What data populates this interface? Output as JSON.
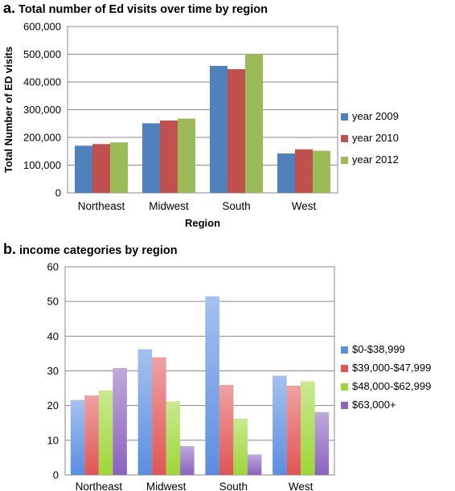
{
  "chart_data": [
    {
      "type": "bar",
      "panel_label": "a.",
      "title": "Total number of Ed visits over time by region",
      "xlabel": "Region",
      "ylabel": "Total Number of ED visits",
      "ylim": [
        0,
        600000
      ],
      "yticks": [
        0,
        100000,
        200000,
        300000,
        400000,
        500000,
        600000
      ],
      "ytick_labels": [
        "0",
        "100,000",
        "200,000",
        "300,000",
        "400,000",
        "500,000",
        "600,000"
      ],
      "categories": [
        "Northeast",
        "Midwest",
        "South",
        "West"
      ],
      "series": [
        {
          "name": "year 2009",
          "values": [
            170000,
            251000,
            458000,
            142000
          ],
          "color": "#4f81bd"
        },
        {
          "name": "year 2010",
          "values": [
            176000,
            261000,
            446000,
            157000
          ],
          "color": "#c0504d"
        },
        {
          "name": "year 2012",
          "values": [
            182000,
            268000,
            500000,
            152000
          ],
          "color": "#9bbb59"
        }
      ],
      "grid": "horizontal",
      "legend": "right"
    },
    {
      "type": "bar",
      "panel_label": "b.",
      "title": "income categories by region",
      "xlabel": "",
      "ylabel": "",
      "ylim": [
        0,
        60
      ],
      "yticks": [
        0,
        10,
        20,
        30,
        40,
        50,
        60
      ],
      "ytick_labels": [
        "0",
        "10",
        "20",
        "30",
        "40",
        "50",
        "60"
      ],
      "categories": [
        "Northeast",
        "Midwest",
        "South",
        "West"
      ],
      "series": [
        {
          "name": "$0-$38,999",
          "values": [
            21.6,
            36.2,
            51.5,
            28.6
          ],
          "color": "#5b8ee0"
        },
        {
          "name": "$39,000-$47,999",
          "values": [
            22.9,
            33.9,
            25.9,
            25.7
          ],
          "color": "#e05555"
        },
        {
          "name": "$48,000-$62,999",
          "values": [
            24.3,
            21.2,
            16.2,
            27.0
          ],
          "color": "#9ed638"
        },
        {
          "name": "$63,000+",
          "values": [
            30.8,
            8.3,
            5.9,
            18.1
          ],
          "color": "#8a63bd"
        }
      ],
      "grid": "horizontal",
      "legend": "right"
    }
  ]
}
